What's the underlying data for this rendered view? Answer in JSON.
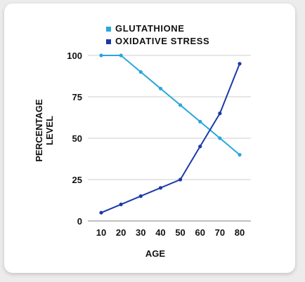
{
  "chart_data": {
    "type": "line",
    "title": "",
    "xlabel": "AGE",
    "ylabel": "PERCENTAGE LEVEL",
    "ylabel_lines": [
      "PERCENTAGE",
      "LEVEL"
    ],
    "x": [
      10,
      20,
      30,
      40,
      50,
      60,
      70,
      80
    ],
    "x_tick_labels": [
      "10",
      "20",
      "30",
      "40",
      "50",
      "60",
      "70",
      "80"
    ],
    "y_ticks": [
      0,
      25,
      50,
      75,
      100
    ],
    "y_tick_labels": [
      "0",
      "25",
      "50",
      "75",
      "100"
    ],
    "xlim": [
      10,
      80
    ],
    "ylim": [
      0,
      100
    ],
    "grid": "horizontal",
    "legend_position": "top",
    "series": [
      {
        "name": "GLUTATHIONE",
        "color": "#28a7dc",
        "values": [
          100,
          100,
          90,
          80,
          70,
          60,
          50,
          40
        ]
      },
      {
        "name": "OXIDATIVE STRESS",
        "color": "#1a3aa8",
        "values": [
          5,
          10,
          15,
          20,
          25,
          45,
          65,
          95
        ]
      }
    ]
  }
}
